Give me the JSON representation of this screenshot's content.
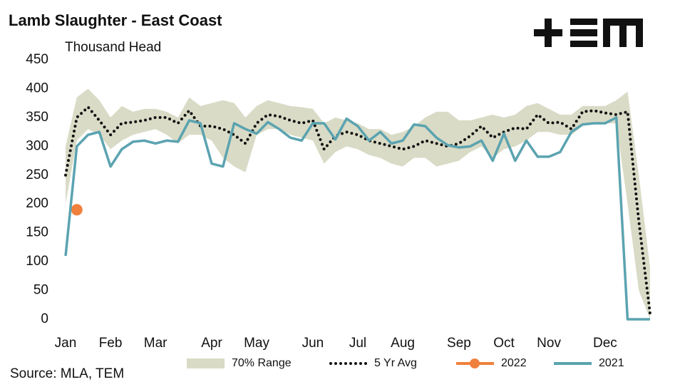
{
  "chart_data": {
    "type": "line",
    "title": "Lamb Slaughter - East Coast",
    "y_label": "Thousand Head",
    "source": "Source: MLA, TEM",
    "categories": [
      "Jan",
      null,
      null,
      null,
      "Feb",
      null,
      null,
      null,
      "Mar",
      null,
      null,
      null,
      null,
      "Apr",
      null,
      null,
      null,
      "May",
      null,
      null,
      null,
      null,
      "Jun",
      null,
      null,
      null,
      "Jul",
      null,
      null,
      null,
      "Aug",
      null,
      null,
      null,
      null,
      "Sep",
      null,
      null,
      null,
      "Oct",
      null,
      null,
      null,
      "Nov",
      null,
      null,
      null,
      null,
      "Dec",
      null,
      null,
      null,
      null
    ],
    "ylim": [
      0,
      450
    ],
    "yticks": [
      0,
      50,
      100,
      150,
      200,
      250,
      300,
      350,
      400,
      450
    ],
    "grid": false,
    "legend": "bottom",
    "series": [
      {
        "name": "70% Range",
        "kind": "band",
        "color": "#d9dbc6",
        "high": [
          300,
          385,
          400,
          380,
          350,
          370,
          360,
          365,
          365,
          360,
          350,
          385,
          370,
          375,
          380,
          375,
          350,
          370,
          380,
          375,
          370,
          368,
          365,
          340,
          350,
          345,
          340,
          330,
          330,
          320,
          325,
          335,
          350,
          360,
          360,
          345,
          345,
          350,
          355,
          350,
          355,
          370,
          375,
          365,
          355,
          355,
          370,
          370,
          370,
          380,
          395,
          250,
          90
        ],
        "low": [
          200,
          310,
          330,
          320,
          295,
          310,
          320,
          325,
          330,
          320,
          305,
          320,
          320,
          310,
          280,
          265,
          255,
          320,
          330,
          330,
          320,
          315,
          310,
          270,
          290,
          300,
          295,
          285,
          280,
          270,
          265,
          280,
          280,
          265,
          270,
          275,
          290,
          300,
          280,
          295,
          300,
          310,
          325,
          325,
          320,
          320,
          335,
          340,
          340,
          340,
          200,
          50,
          0
        ]
      },
      {
        "name": "5 Yr Avg",
        "kind": "dotted",
        "color": "#111111",
        "values": [
          250,
          350,
          368,
          345,
          320,
          340,
          342,
          345,
          350,
          350,
          340,
          362,
          335,
          335,
          330,
          320,
          305,
          340,
          355,
          352,
          345,
          340,
          345,
          295,
          318,
          325,
          320,
          310,
          305,
          300,
          295,
          300,
          310,
          305,
          300,
          305,
          318,
          335,
          315,
          325,
          332,
          330,
          355,
          340,
          342,
          330,
          360,
          362,
          358,
          355,
          360,
          170,
          10
        ]
      },
      {
        "name": "2022",
        "kind": "point",
        "color": "#f0803c",
        "values": [
          null,
          190,
          null,
          null,
          null,
          null,
          null,
          null,
          null,
          null,
          null,
          null,
          null,
          null,
          null,
          null,
          null,
          null,
          null,
          null,
          null,
          null,
          null,
          null,
          null,
          null,
          null,
          null,
          null,
          null,
          null,
          null,
          null,
          null,
          null,
          null,
          null,
          null,
          null,
          null,
          null,
          null,
          null,
          null,
          null,
          null,
          null,
          null,
          null,
          null,
          null,
          null,
          null
        ]
      },
      {
        "name": "2021",
        "kind": "line",
        "color": "#5ba3b0",
        "values": [
          110,
          300,
          320,
          325,
          265,
          295,
          308,
          310,
          305,
          310,
          308,
          345,
          340,
          270,
          265,
          340,
          330,
          322,
          342,
          330,
          315,
          310,
          340,
          340,
          312,
          348,
          335,
          310,
          325,
          305,
          310,
          338,
          335,
          315,
          302,
          298,
          300,
          310,
          275,
          322,
          275,
          310,
          282,
          282,
          290,
          325,
          338,
          340,
          340,
          350,
          0,
          0,
          0
        ]
      }
    ]
  }
}
